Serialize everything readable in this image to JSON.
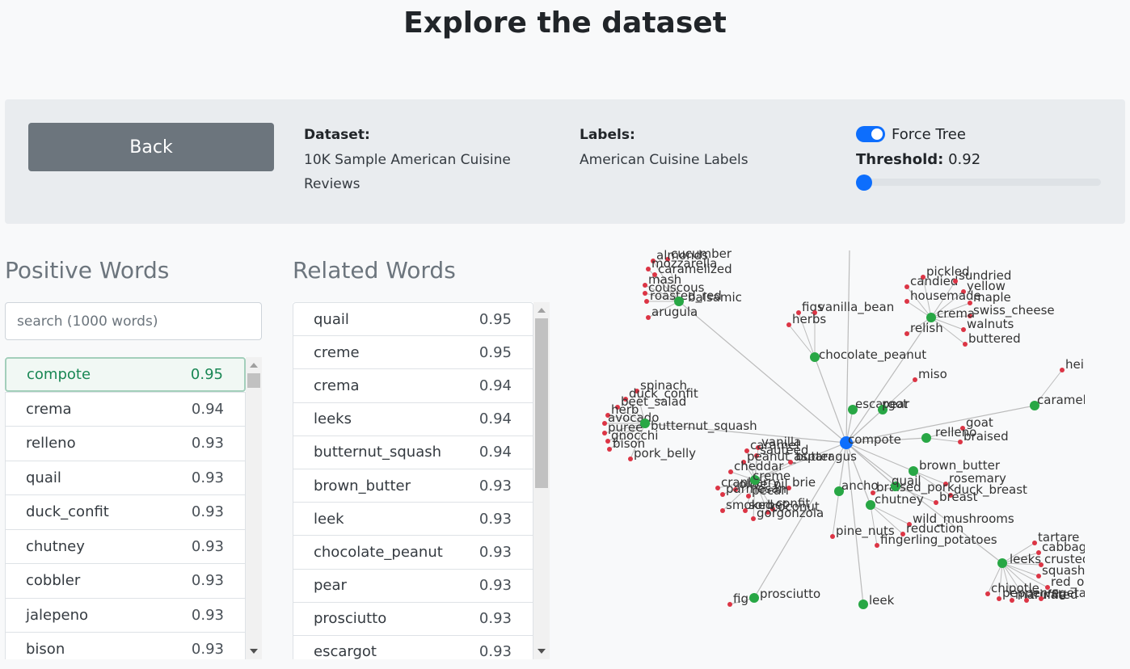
{
  "title": "Explore the dataset",
  "controls": {
    "back_label": "Back",
    "dataset_label": "Dataset:",
    "dataset_value": "10K Sample American Cuisine Reviews",
    "labels_label": "Labels:",
    "labels_value": "American Cuisine Labels",
    "force_tree_label": "Force Tree",
    "force_tree_enabled": true,
    "threshold_label": "Threshold:",
    "threshold_value": "0.92"
  },
  "positive": {
    "title": "Positive Words",
    "search_placeholder": "search (1000 words)",
    "items": [
      {
        "word": "compote",
        "score": "0.95",
        "active": true
      },
      {
        "word": "crema",
        "score": "0.94"
      },
      {
        "word": "relleno",
        "score": "0.93"
      },
      {
        "word": "quail",
        "score": "0.93"
      },
      {
        "word": "duck_confit",
        "score": "0.93"
      },
      {
        "word": "chutney",
        "score": "0.93"
      },
      {
        "word": "cobbler",
        "score": "0.93"
      },
      {
        "word": "jalepeno",
        "score": "0.93"
      },
      {
        "word": "bison",
        "score": "0.93"
      }
    ]
  },
  "related": {
    "title": "Related Words",
    "items": [
      {
        "word": "quail",
        "score": "0.95"
      },
      {
        "word": "creme",
        "score": "0.95"
      },
      {
        "word": "crema",
        "score": "0.94"
      },
      {
        "word": "leeks",
        "score": "0.94"
      },
      {
        "word": "butternut_squash",
        "score": "0.94"
      },
      {
        "word": "brown_butter",
        "score": "0.93"
      },
      {
        "word": "leek",
        "score": "0.93"
      },
      {
        "word": "chocolate_peanut",
        "score": "0.93"
      },
      {
        "word": "pear",
        "score": "0.93"
      },
      {
        "word": "prosciutto",
        "score": "0.93"
      },
      {
        "word": "escargot",
        "score": "0.93"
      }
    ]
  },
  "graph": {
    "colors": {
      "root": "#0d6efd",
      "hub": "#28a745",
      "leaf": "#dc3545",
      "edge": "#bbbbbb"
    },
    "root": "compote",
    "hubs": [
      {
        "id": "balsamic",
        "label": "balsamic",
        "leaves": [
          "cucumber",
          "almonds",
          "mozzarella",
          "caramelized",
          "mash",
          "couscous",
          "roasted_red",
          "arugula"
        ]
      },
      {
        "id": "chocolate_peanut",
        "label": "chocolate_peanut",
        "leaves": [
          "figs",
          "vanilla_bean",
          "herbs"
        ]
      },
      {
        "id": "crema",
        "label": "crema",
        "leaves": [
          "pickled",
          "candied",
          "sundried",
          "yellow",
          "housemade",
          "maple",
          "swiss_cheese",
          "relish",
          "walnuts",
          "buttered"
        ]
      },
      {
        "id": "escargot",
        "label": "escargot",
        "leaves": []
      },
      {
        "id": "pear",
        "label": "pear",
        "leaves": [
          "miso"
        ]
      },
      {
        "id": "caramel",
        "label": "caramel",
        "leaves": [
          "hei"
        ]
      },
      {
        "id": "butternut_squash",
        "label": "butternut_squash",
        "leaves": [
          "spinach",
          "duck_confit",
          "beet_salad",
          "herb",
          "avocado",
          "puree",
          "gnocchi",
          "bison",
          "pork_belly"
        ]
      },
      {
        "id": "relleno",
        "label": "relleno",
        "leaves": [
          "goat",
          "braised"
        ]
      },
      {
        "id": "creme",
        "label": "creme",
        "leaves": [
          "vanilla",
          "caramel",
          "sauteed",
          "peanut_butter",
          "asparagus",
          "cheddar",
          "brie",
          "cranberry",
          "olive_oil",
          "parmesan",
          "pecan",
          "confit",
          "smoked",
          "sorbet",
          "coconut",
          "gorgonzola"
        ]
      },
      {
        "id": "brown_butter",
        "label": "brown_butter",
        "leaves": [
          "rosemary",
          "duck_breast"
        ]
      },
      {
        "id": "quail",
        "label": "quail",
        "leaves": [
          "braised_pork",
          "breast"
        ]
      },
      {
        "id": "ancho",
        "label": "ancho",
        "leaves": [
          "pine_nuts"
        ]
      },
      {
        "id": "chutney",
        "label": "chutney",
        "leaves": [
          "wild_mushrooms",
          "reduction",
          "fingerling_potatoes"
        ]
      },
      {
        "id": "leeks",
        "label": "leeks",
        "leaves": [
          "tartare",
          "cabbage",
          "crusted",
          "squash",
          "red_onion",
          "chipotle",
          "pepper",
          "marinated",
          "truffle",
          "vegetables"
        ]
      },
      {
        "id": "prosciutto",
        "label": "prosciutto",
        "leaves": [
          "fig"
        ]
      },
      {
        "id": "leek",
        "label": "leek",
        "leaves": []
      }
    ]
  }
}
